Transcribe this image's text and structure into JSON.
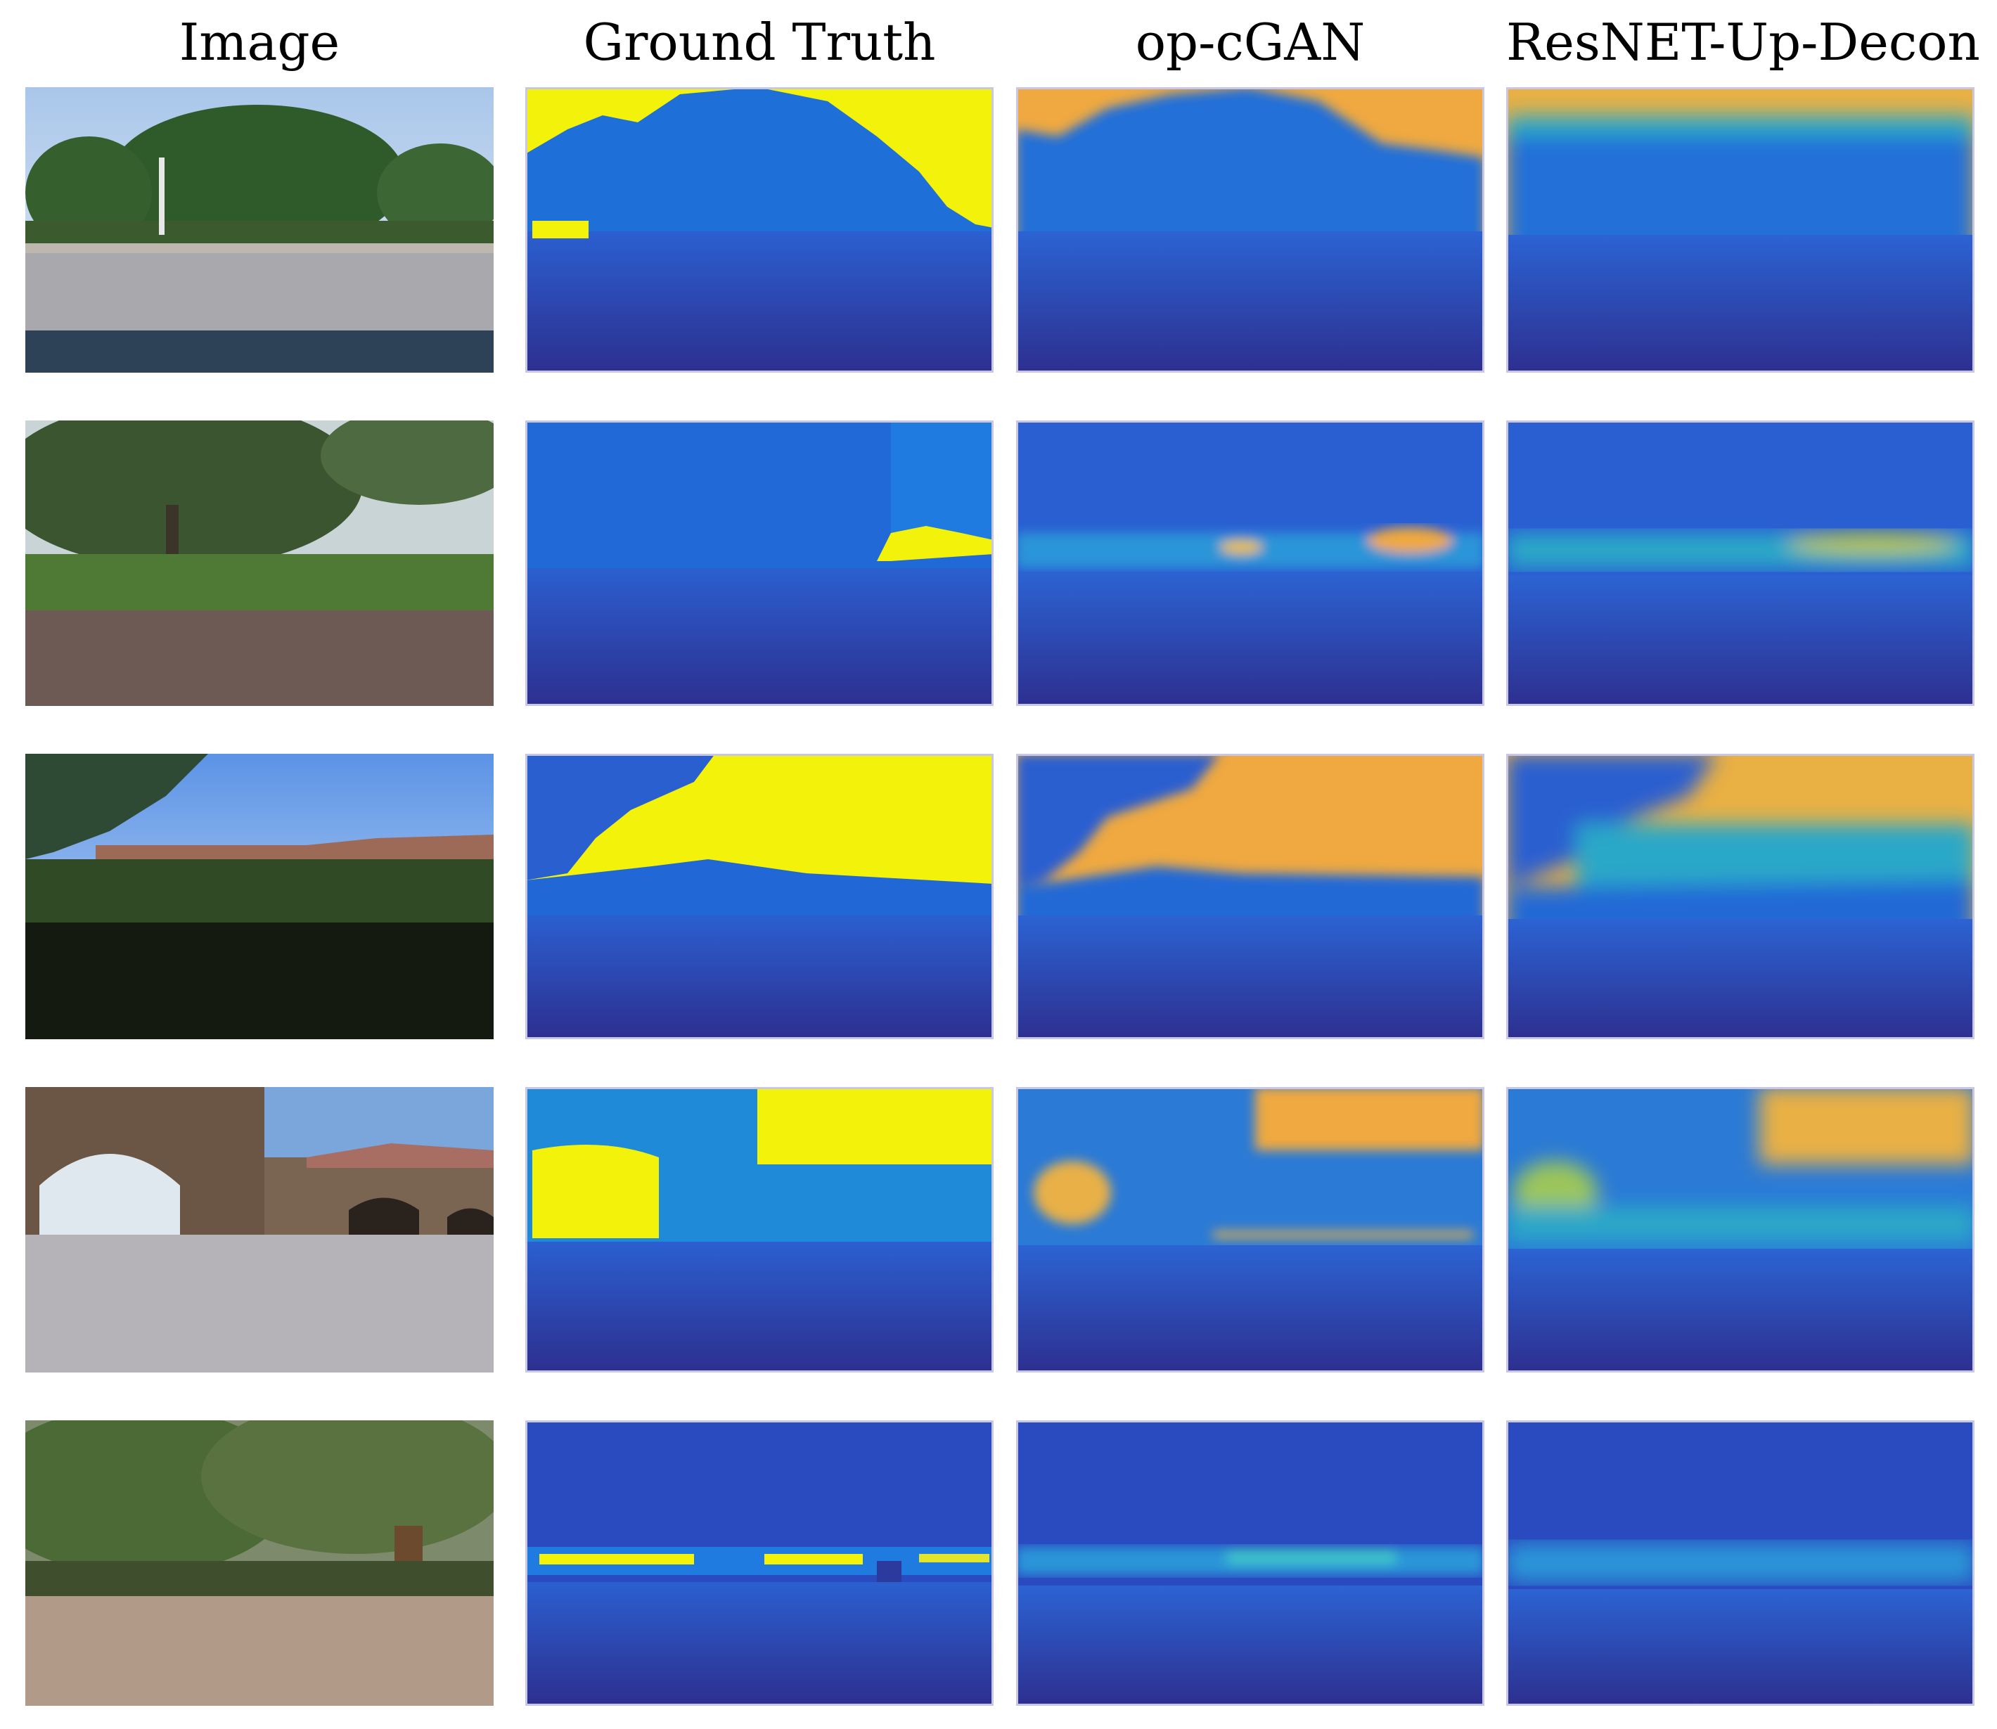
{
  "columns": [
    "Image",
    "Ground Truth",
    "op-cGAN",
    "ResNET-Up-Decon"
  ],
  "rows": [
    {
      "scene": "tree-road",
      "kind": [
        "photo",
        "depth-gt",
        "depth-pred",
        "depth-pred"
      ]
    },
    {
      "scene": "tree-grass",
      "kind": [
        "photo",
        "depth-gt",
        "depth-pred",
        "depth-pred"
      ]
    },
    {
      "scene": "hedge-buildings",
      "kind": [
        "photo",
        "depth-gt",
        "depth-pred",
        "depth-pred"
      ]
    },
    {
      "scene": "arch-courtyard",
      "kind": [
        "photo",
        "depth-gt",
        "depth-pred",
        "depth-pred"
      ]
    },
    {
      "scene": "orchard",
      "kind": [
        "photo",
        "depth-gt",
        "depth-pred",
        "depth-pred"
      ]
    }
  ],
  "colormap": {
    "near": "#2d2f8f",
    "mid": "#2277d8",
    "far": "#f2f20a",
    "far_pred": "#f0a940"
  }
}
